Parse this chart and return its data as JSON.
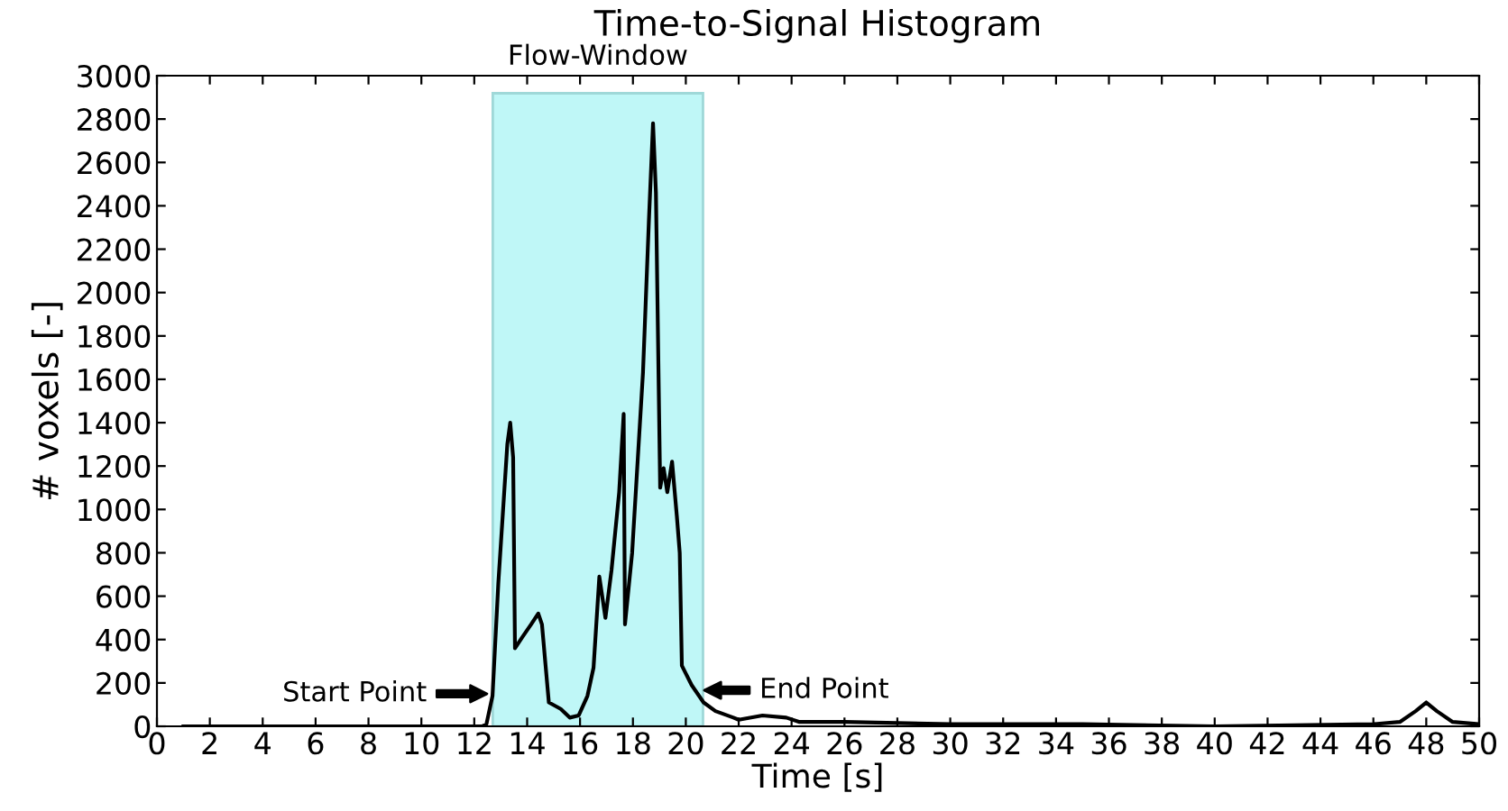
{
  "chart_data": {
    "type": "line",
    "title": "Time-to-Signal Histogram",
    "xlabel": "Time [s]",
    "ylabel": "# voxels [-]",
    "x": [
      1,
      12.3,
      12.46,
      12.69,
      12.91,
      13.25,
      13.36,
      13.47,
      13.54,
      13.81,
      14.15,
      14.42,
      14.56,
      14.82,
      15.27,
      15.61,
      15.95,
      16.28,
      16.51,
      16.73,
      16.96,
      17.19,
      17.48,
      17.65,
      17.7,
      17.97,
      18.38,
      18.6,
      18.76,
      18.87,
      19.03,
      19.16,
      19.3,
      19.48,
      19.66,
      19.77,
      19.85,
      20.22,
      20.67,
      21.12,
      21.8,
      22.0,
      22.9,
      23.8,
      24.3,
      26,
      30,
      35,
      40,
      46,
      47,
      47.6,
      48,
      48.4,
      49,
      50
    ],
    "series": [
      {
        "color": "#000000",
        "values": [
          0,
          0,
          10,
          140,
          660,
          1300,
          1400,
          1240,
          360,
          410,
          470,
          520,
          470,
          110,
          80,
          40,
          50,
          140,
          270,
          690,
          500,
          720,
          1080,
          1440,
          470,
          800,
          1630,
          2320,
          2780,
          2460,
          1100,
          1190,
          1080,
          1220,
          970,
          800,
          280,
          190,
          110,
          70,
          40,
          30,
          50,
          40,
          20,
          20,
          10,
          10,
          0,
          10,
          20,
          70,
          110,
          70,
          20,
          10
        ]
      }
    ],
    "xlim": [
      0,
      50
    ],
    "xticks": [
      0,
      2,
      4,
      6,
      8,
      10,
      12,
      14,
      16,
      18,
      20,
      22,
      24,
      26,
      28,
      30,
      32,
      34,
      36,
      38,
      40,
      42,
      44,
      46,
      48,
      50
    ],
    "ylim": [
      0,
      3000
    ],
    "yticks": [
      0,
      200,
      400,
      600,
      800,
      1000,
      1200,
      1400,
      1600,
      1800,
      2000,
      2200,
      2400,
      2600,
      2800,
      3000
    ],
    "bands": [
      {
        "axis": "x",
        "from": 12.7,
        "to": 20.65,
        "label": "Flow-Window",
        "color": "#bff7f7"
      }
    ],
    "annotations": [
      {
        "text": "Start Point",
        "x": 12.48,
        "y": 150
      },
      {
        "text": "End Point",
        "x": 20.7,
        "y": 166
      }
    ],
    "grid": false,
    "legend": false,
    "marker": "none",
    "line_style": "solid"
  }
}
